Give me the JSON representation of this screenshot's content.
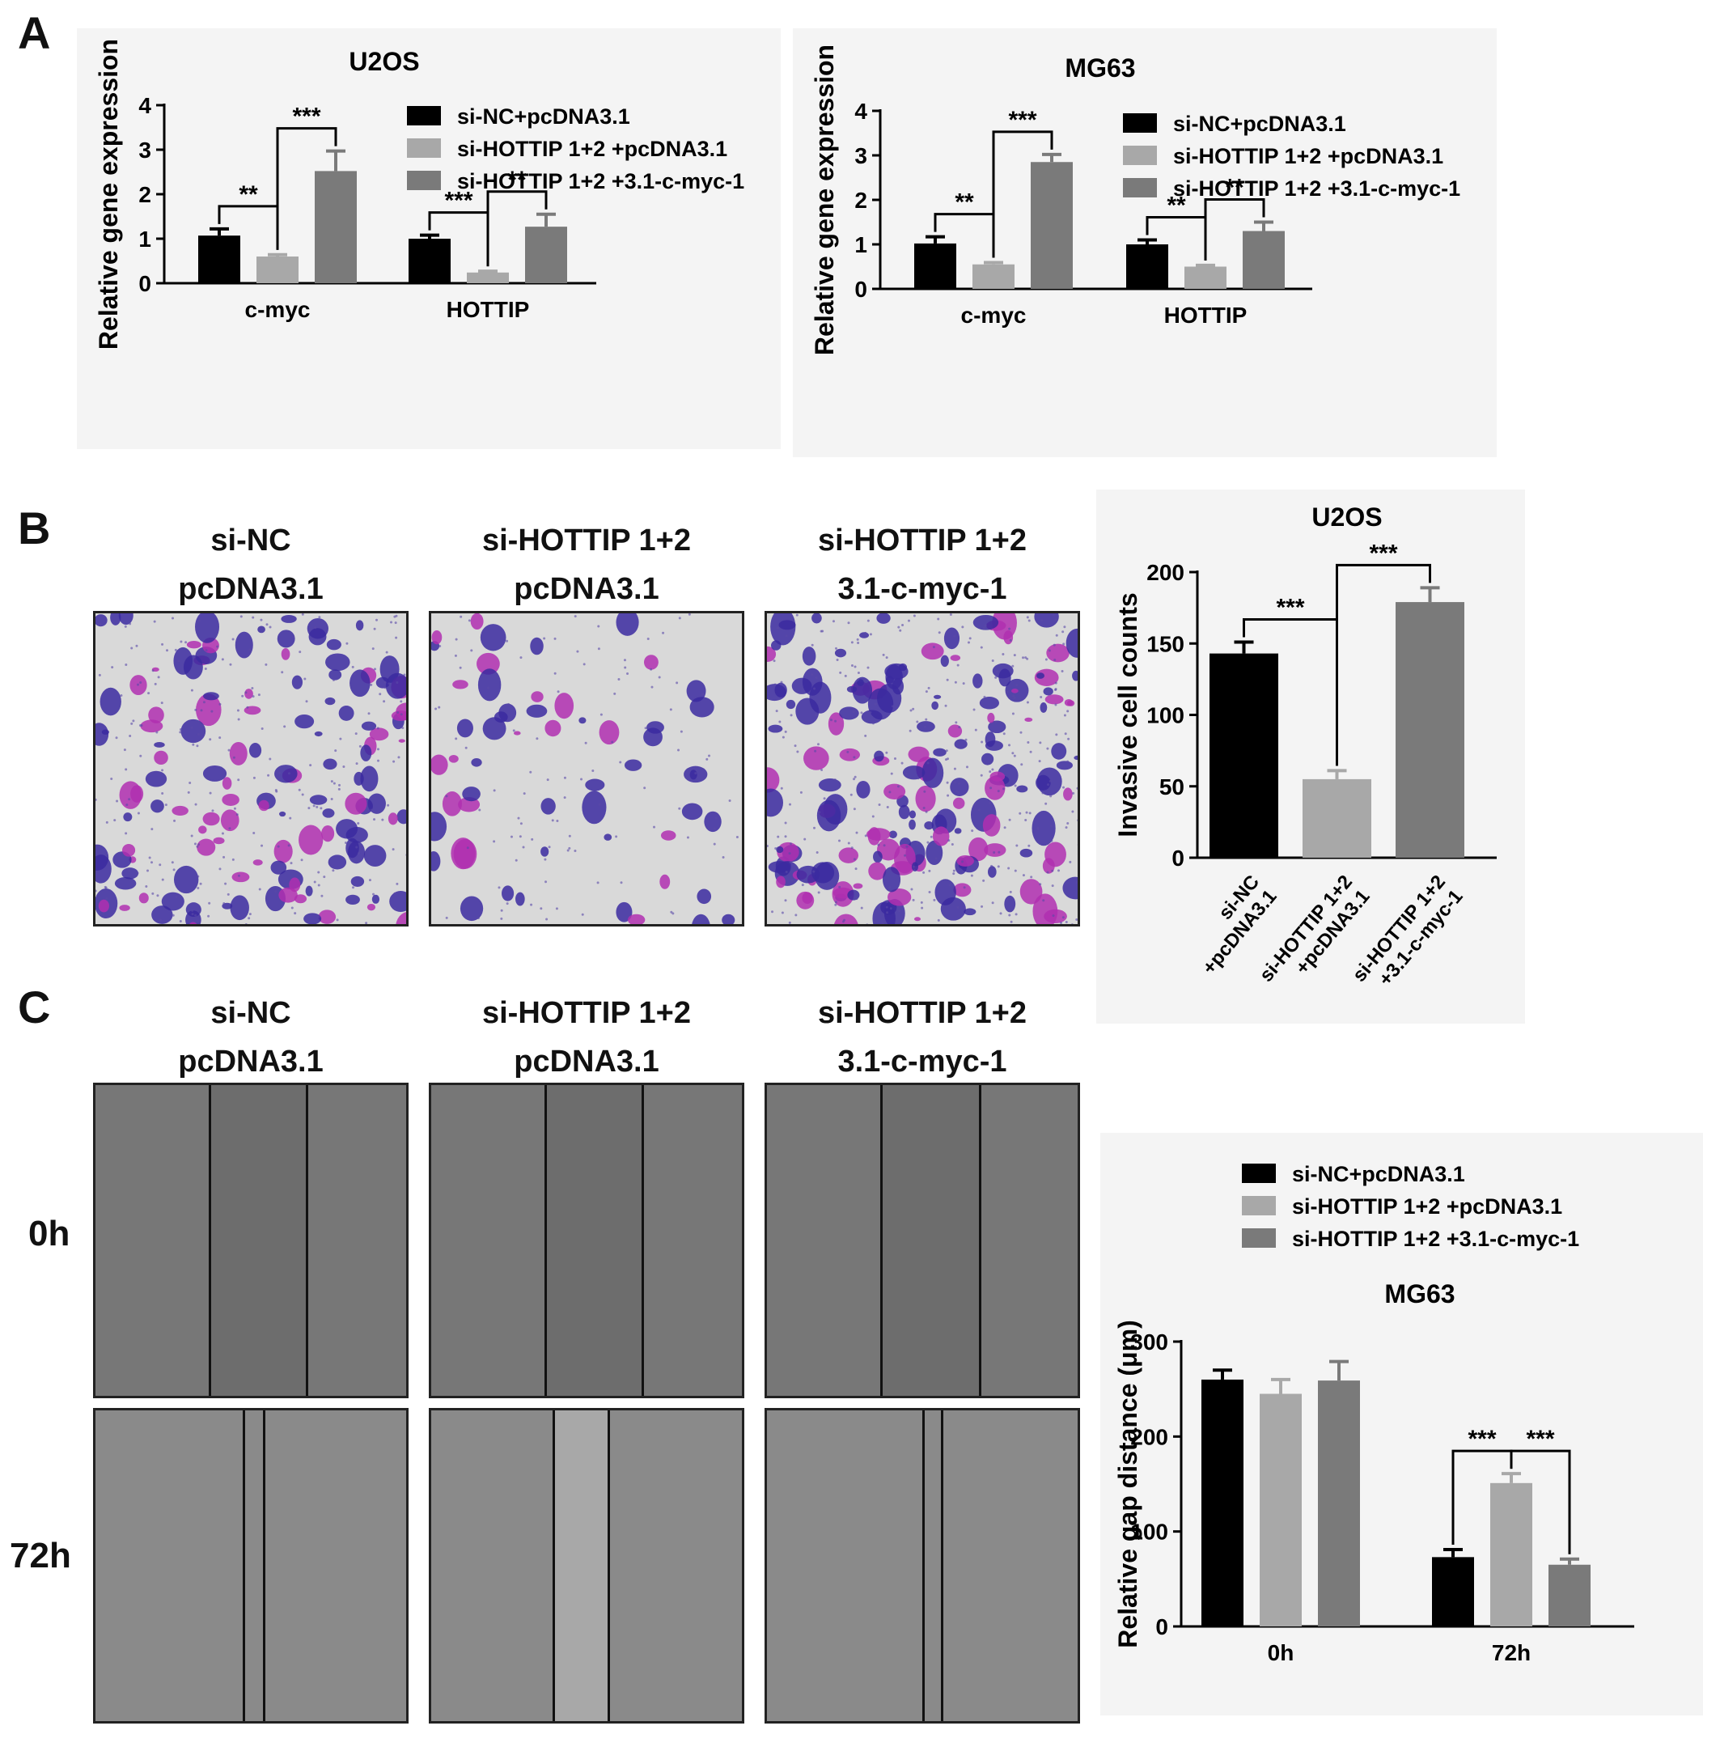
{
  "panels": {
    "a": "A",
    "b": "B",
    "c": "C"
  },
  "legend_items": [
    "si-NC+pcDNA3.1",
    "si-HOTTIP 1+2 +pcDNA3.1",
    "si-HOTTIP 1+2 +3.1-c-myc-1"
  ],
  "colors": {
    "s1": "#000000",
    "s2": "#a8a8a8",
    "s3": "#7a7a7a"
  },
  "conditions": [
    {
      "line1": "si-NC",
      "line2": "pcDNA3.1"
    },
    {
      "line1": "si-HOTTIP 1+2",
      "line2": "pcDNA3.1"
    },
    {
      "line1": "si-HOTTIP 1+2",
      "line2": "3.1-c-myc-1"
    }
  ],
  "time_labels": [
    "0h",
    "72h"
  ],
  "chart_data": [
    {
      "id": "u2os_expr",
      "type": "bar",
      "title": "U2OS",
      "ylabel": "Relative gene expression",
      "ylim": [
        0,
        4
      ],
      "yticks": [
        "0",
        "1",
        "2",
        "3",
        "4"
      ],
      "categories": [
        "c-myc",
        "HOTTIP"
      ],
      "series": [
        {
          "name": "si-NC+pcDNA3.1",
          "values": [
            1.07,
            1.0
          ],
          "errors": [
            0.15,
            0.08
          ]
        },
        {
          "name": "si-HOTTIP 1+2 +pcDNA3.1",
          "values": [
            0.6,
            0.24
          ],
          "errors": [
            0.04,
            0.03
          ]
        },
        {
          "name": "si-HOTTIP 1+2 +3.1-c-myc-1",
          "values": [
            2.52,
            1.27
          ],
          "errors": [
            0.45,
            0.28
          ]
        }
      ],
      "significance": [
        {
          "category": 0,
          "from": 0,
          "to": 1,
          "label": "**"
        },
        {
          "category": 0,
          "from": 1,
          "to": 2,
          "label": "***"
        },
        {
          "category": 1,
          "from": 0,
          "to": 1,
          "label": "***"
        },
        {
          "category": 1,
          "from": 1,
          "to": 2,
          "label": "**"
        }
      ]
    },
    {
      "id": "mg63_expr",
      "type": "bar",
      "title": "MG63",
      "ylabel": "Relative gene expression",
      "ylim": [
        0,
        4
      ],
      "yticks": [
        "0",
        "1",
        "2",
        "3",
        "4"
      ],
      "categories": [
        "c-myc",
        "HOTTIP"
      ],
      "series": [
        {
          "name": "si-NC+pcDNA3.1",
          "values": [
            1.02,
            1.0
          ],
          "errors": [
            0.15,
            0.1
          ]
        },
        {
          "name": "si-HOTTIP 1+2 +pcDNA3.1",
          "values": [
            0.55,
            0.5
          ],
          "errors": [
            0.04,
            0.03
          ]
        },
        {
          "name": "si-HOTTIP 1+2 +3.1-c-myc-1",
          "values": [
            2.85,
            1.3
          ],
          "errors": [
            0.17,
            0.2
          ]
        }
      ],
      "significance": [
        {
          "category": 0,
          "from": 0,
          "to": 1,
          "label": "**"
        },
        {
          "category": 0,
          "from": 1,
          "to": 2,
          "label": "***"
        },
        {
          "category": 1,
          "from": 0,
          "to": 1,
          "label": "**"
        },
        {
          "category": 1,
          "from": 1,
          "to": 2,
          "label": "**"
        }
      ]
    },
    {
      "id": "u2os_invasion",
      "type": "bar",
      "title": "U2OS",
      "ylabel": "Invasive cell counts",
      "ylim": [
        0,
        200
      ],
      "yticks": [
        "0",
        "50",
        "100",
        "150",
        "200"
      ],
      "categories": [
        "si-NC +pcDNA3.1",
        "si-HOTTIP 1+2 +pcDNA3.1",
        "si-HOTTIP 1+2 +3.1-c-myc-1"
      ],
      "values": [
        143,
        55,
        179
      ],
      "errors": [
        8,
        6,
        10
      ],
      "significance": [
        {
          "from": 0,
          "to": 1,
          "label": "***"
        },
        {
          "from": 1,
          "to": 2,
          "label": "***"
        }
      ]
    },
    {
      "id": "mg63_gap",
      "type": "bar",
      "title": "MG63",
      "ylabel": "Relative gap distance (μm)",
      "ylim": [
        0,
        300
      ],
      "yticks": [
        "0",
        "100",
        "200",
        "300"
      ],
      "categories": [
        "0h",
        "72h"
      ],
      "series": [
        {
          "name": "si-NC+pcDNA3.1",
          "values": [
            260,
            73
          ],
          "errors": [
            10,
            8
          ]
        },
        {
          "name": "si-HOTTIP 1+2 +pcDNA3.1",
          "values": [
            245,
            151
          ],
          "errors": [
            15,
            10
          ]
        },
        {
          "name": "si-HOTTIP 1+2 +3.1-c-myc-1",
          "values": [
            259,
            65
          ],
          "errors": [
            20,
            6
          ]
        }
      ],
      "significance": [
        {
          "category": 1,
          "from": 0,
          "to": 1,
          "label": "***"
        },
        {
          "category": 1,
          "from": 1,
          "to": 2,
          "label": "***"
        }
      ]
    }
  ]
}
